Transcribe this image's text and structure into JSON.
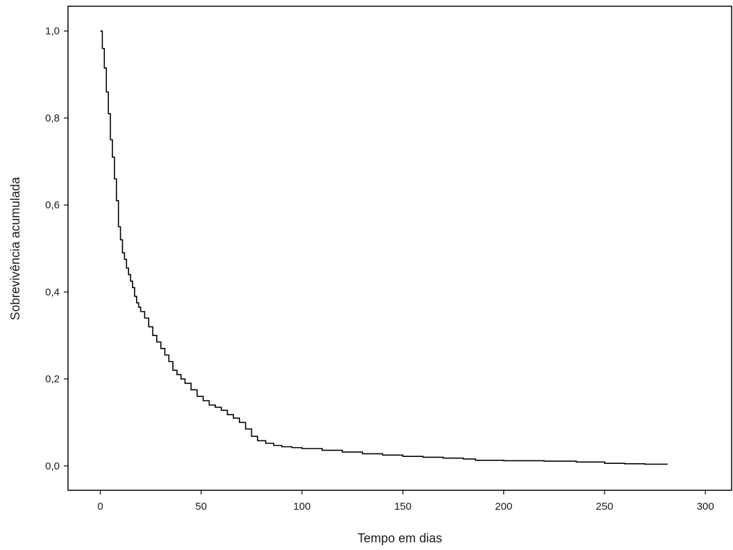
{
  "chart_data": {
    "type": "line",
    "step": true,
    "xlabel": "Tempo em dias",
    "ylabel": "Sobrevivência acumulada",
    "xlim": [
      -16,
      313
    ],
    "ylim": [
      -0.056,
      1.057
    ],
    "x_ticks": [
      0,
      50,
      100,
      150,
      200,
      250,
      300
    ],
    "x_tick_labels": [
      "0",
      "50",
      "100",
      "150",
      "200",
      "250",
      "300"
    ],
    "y_ticks": [
      0.0,
      0.2,
      0.4,
      0.6,
      0.8,
      1.0
    ],
    "y_tick_labels": [
      "0,0",
      "0,2",
      "0,4",
      "0,6",
      "0,8",
      "1,0"
    ],
    "grid": false,
    "legend": "none",
    "line_color": "#000000",
    "series": [
      {
        "x": [
          0,
          1,
          2,
          3,
          4,
          5,
          6,
          7,
          8,
          9,
          10,
          11,
          12,
          13,
          14,
          15,
          16,
          17,
          18,
          19,
          20,
          22,
          24,
          26,
          28,
          30,
          32,
          34,
          36,
          38,
          40,
          42,
          45,
          48,
          51,
          54,
          57,
          60,
          63,
          66,
          69,
          72,
          75,
          78,
          82,
          86,
          90,
          95,
          100,
          110,
          120,
          130,
          140,
          150,
          160,
          170,
          180,
          186,
          200,
          220,
          236,
          250,
          260,
          270,
          281
        ],
        "y": [
          1.0,
          0.96,
          0.915,
          0.86,
          0.81,
          0.75,
          0.71,
          0.66,
          0.61,
          0.55,
          0.52,
          0.49,
          0.475,
          0.455,
          0.44,
          0.425,
          0.41,
          0.39,
          0.375,
          0.365,
          0.355,
          0.34,
          0.32,
          0.3,
          0.285,
          0.27,
          0.255,
          0.24,
          0.22,
          0.21,
          0.2,
          0.19,
          0.175,
          0.16,
          0.15,
          0.14,
          0.135,
          0.128,
          0.118,
          0.11,
          0.1,
          0.085,
          0.068,
          0.058,
          0.052,
          0.047,
          0.044,
          0.042,
          0.04,
          0.036,
          0.032,
          0.028,
          0.025,
          0.022,
          0.02,
          0.018,
          0.016,
          0.013,
          0.012,
          0.011,
          0.009,
          0.006,
          0.005,
          0.004,
          0.003
        ]
      }
    ]
  }
}
